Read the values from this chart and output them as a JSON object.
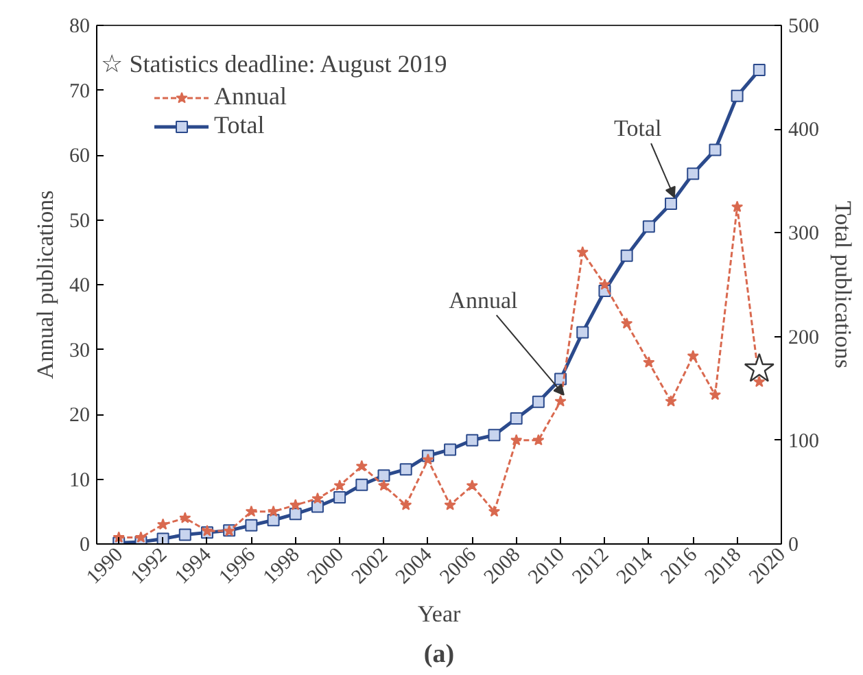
{
  "chart_data": {
    "type": "line",
    "xlabel": "Year",
    "ylabel": "Annual publications",
    "y2label": "Total publications",
    "x": [
      1990,
      1991,
      1992,
      1993,
      1994,
      1995,
      1996,
      1997,
      1998,
      1999,
      2000,
      2001,
      2002,
      2003,
      2004,
      2005,
      2006,
      2007,
      2008,
      2009,
      2010,
      2011,
      2012,
      2013,
      2014,
      2015,
      2016,
      2017,
      2018,
      2019
    ],
    "series": [
      {
        "name": "Annual",
        "color": "#d9694f",
        "marker": "star",
        "line_style": "dashed",
        "values": [
          1,
          1,
          3,
          4,
          2,
          2,
          5,
          5,
          6,
          7,
          9,
          12,
          9,
          6,
          13,
          6,
          9,
          5,
          16,
          16,
          22,
          45,
          40,
          34,
          28,
          22,
          29,
          23,
          52,
          25
        ]
      },
      {
        "name": "Total",
        "color": "#2b4a8c",
        "marker": "square",
        "line_style": "solid",
        "axis": "y2",
        "values": [
          1,
          2,
          5,
          9,
          11,
          13,
          18,
          23,
          29,
          36,
          45,
          57,
          66,
          72,
          85,
          91,
          100,
          105,
          121,
          137,
          159,
          204,
          244,
          278,
          306,
          328,
          357,
          380,
          432,
          457
        ]
      },
      {
        "type": "scatter",
        "color": "#333333",
        "marker": "star",
        "x": [
          2019
        ],
        "values": [
          27
        ]
      }
    ],
    "xlim": [
      1989,
      2020
    ],
    "xticks": [
      1990,
      1992,
      1994,
      1996,
      1998,
      2000,
      2002,
      2004,
      2006,
      2008,
      2010,
      2012,
      2014,
      2016,
      2018,
      2020
    ],
    "ylim": [
      0,
      80
    ],
    "yticks": [
      0,
      10,
      20,
      30,
      40,
      50,
      60,
      70,
      80
    ],
    "y2lim": [
      0,
      500
    ],
    "y2ticks": [
      0,
      100,
      200,
      300,
      400,
      500
    ],
    "legend": "top left",
    "grid": false,
    "annotations": [
      "☆ Statistics deadline: August 2019",
      {
        "text": "Annual",
        "x": 2010,
        "y": 22
      },
      {
        "text": "Total",
        "x": 2015,
        "y": 52.5
      },
      "(a)"
    ]
  }
}
